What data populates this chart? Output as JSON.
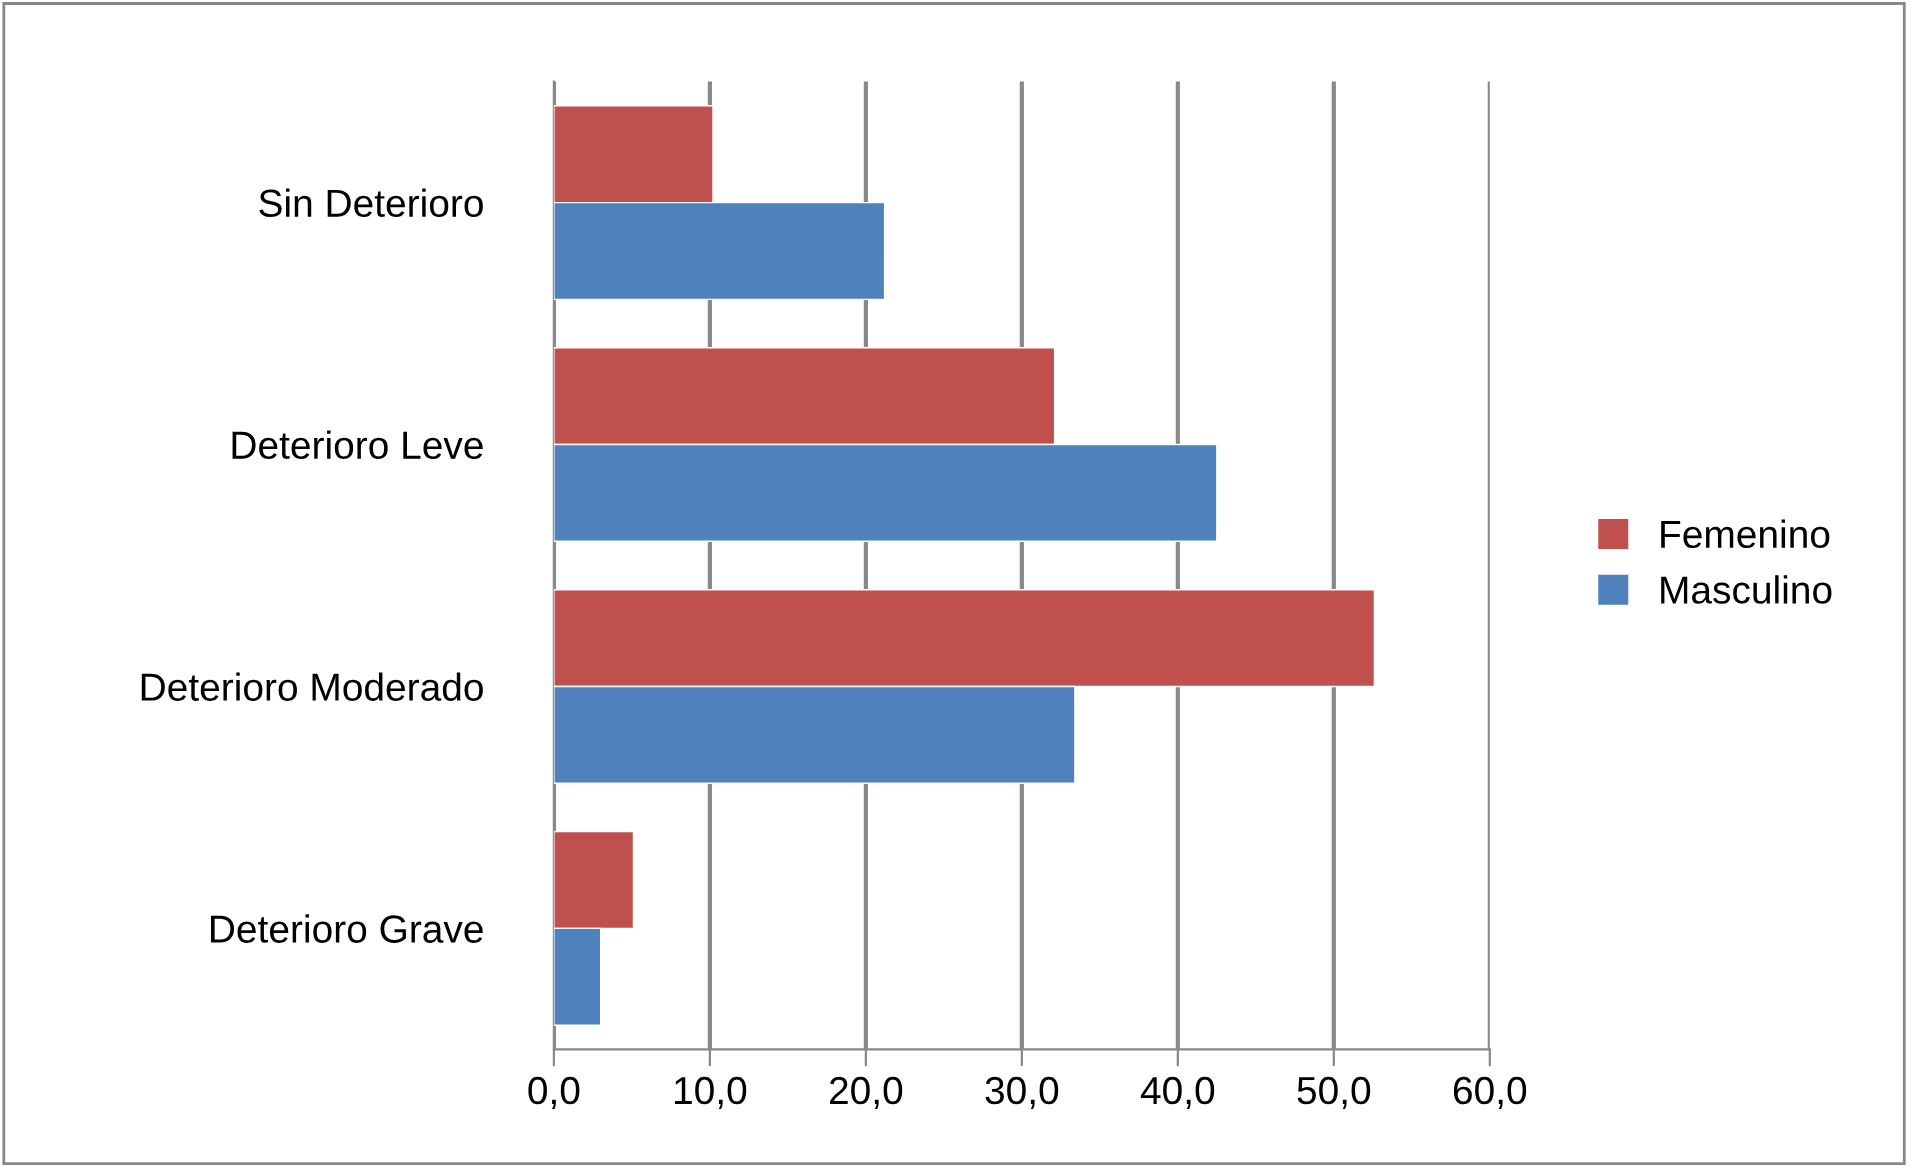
{
  "chart_data": {
    "type": "bar",
    "orientation": "horizontal",
    "categories": [
      "Sin Deterioro",
      "Deterioro Leve",
      "Deterioro Moderado",
      "Deterioro Grave"
    ],
    "series": [
      {
        "name": "Femenino",
        "color": "#c0504d",
        "values": [
          10.2,
          32.1,
          52.6,
          5.1
        ]
      },
      {
        "name": "Masculino",
        "color": "#4f81bd",
        "values": [
          21.2,
          42.5,
          33.4,
          3.0
        ]
      }
    ],
    "xlim": [
      0,
      60
    ],
    "xticks": [
      {
        "value": 0,
        "label": "0,0"
      },
      {
        "value": 10,
        "label": "10,0"
      },
      {
        "value": 20,
        "label": "20,0"
      },
      {
        "value": 30,
        "label": "30,0"
      },
      {
        "value": 40,
        "label": "40,0"
      },
      {
        "value": 50,
        "label": "50,0"
      },
      {
        "value": 60,
        "label": "60,0"
      }
    ],
    "grid": "x",
    "legend": "right"
  }
}
